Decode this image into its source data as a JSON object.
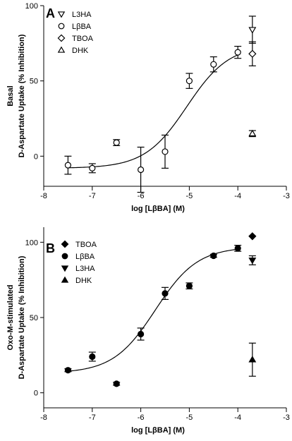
{
  "chart_data": [
    {
      "type": "scatter",
      "panel_label": "A",
      "xlabel": "log [LβBA] (M)",
      "ylabel_lines": [
        "Basal",
        "D-Aspartate Uptake (% Inhibition)"
      ],
      "xlim": [
        -8,
        -3
      ],
      "ylim": [
        -20,
        100
      ],
      "x_ticks": [
        -8,
        -7,
        -6,
        -5,
        -4,
        -3
      ],
      "x_tick_labels": [
        "-8",
        "-7",
        "-6",
        "-5",
        "-4",
        "-3"
      ],
      "y_ticks": [
        0,
        50,
        100
      ],
      "y_tick_labels": [
        "0",
        "50",
        "100"
      ],
      "grid": false,
      "legend": [
        {
          "label": "L3HA",
          "marker": "triangle-down",
          "filled": false
        },
        {
          "label": "LβBA",
          "marker": "circle",
          "filled": false
        },
        {
          "label": "TBOA",
          "marker": "diamond",
          "filled": false
        },
        {
          "label": "DHK",
          "marker": "triangle-up",
          "filled": false
        }
      ],
      "legend_position": "top-left",
      "series": [
        {
          "name": "LβBA",
          "marker": "circle",
          "filled": false,
          "x": [
            -7.5,
            -7.0,
            -6.5,
            -6.0,
            -5.5,
            -5.0,
            -4.5,
            -4.0
          ],
          "y": [
            -6,
            -8,
            9,
            -9,
            3,
            50,
            61,
            69
          ],
          "err": [
            6,
            3,
            2,
            15,
            11,
            5,
            5,
            4
          ]
        },
        {
          "name": "L3HA",
          "marker": "triangle-down",
          "filled": false,
          "x": [
            -3.7
          ],
          "y": [
            84
          ],
          "err": [
            9
          ]
        },
        {
          "name": "TBOA",
          "marker": "diamond",
          "filled": false,
          "x": [
            -3.7
          ],
          "y": [
            68
          ],
          "err": [
            8
          ]
        },
        {
          "name": "DHK",
          "marker": "triangle-up",
          "filled": false,
          "x": [
            -3.7
          ],
          "y": [
            15
          ],
          "err": [
            2
          ]
        }
      ],
      "fit_curve": {
        "series": "LβBA",
        "bottom": -8,
        "top": 74,
        "logEC50": -5.05,
        "hill": 1.0,
        "x_range": [
          -7.5,
          -4.0
        ]
      }
    },
    {
      "type": "scatter",
      "panel_label": "B",
      "xlabel": "log [LβBA] (M)",
      "ylabel_lines": [
        "Oxo-M-stimulated",
        "D-Aspartate Uptake (% Inhibition)"
      ],
      "xlim": [
        -8,
        -3
      ],
      "ylim": [
        -10,
        110
      ],
      "x_ticks": [
        -8,
        -7,
        -6,
        -5,
        -4,
        -3
      ],
      "x_tick_labels": [
        "-8",
        "-7",
        "-6",
        "-5",
        "-4",
        "-3"
      ],
      "y_ticks": [
        0,
        50,
        100
      ],
      "y_tick_labels": [
        "0",
        "50",
        "100"
      ],
      "grid": false,
      "legend": [
        {
          "label": "TBOA",
          "marker": "diamond",
          "filled": true
        },
        {
          "label": "LβBA",
          "marker": "circle",
          "filled": true
        },
        {
          "label": "L3HA",
          "marker": "triangle-down",
          "filled": true
        },
        {
          "label": "DHK",
          "marker": "triangle-up",
          "filled": true
        }
      ],
      "legend_position": "top-left",
      "series": [
        {
          "name": "LβBA",
          "marker": "circle",
          "filled": true,
          "x": [
            -7.5,
            -7.0,
            -6.5,
            -6.0,
            -5.5,
            -5.0,
            -4.5,
            -4.0
          ],
          "y": [
            15,
            24,
            6,
            39,
            66,
            71,
            91,
            96
          ],
          "err": [
            1,
            3,
            1,
            4,
            4,
            2,
            1,
            2
          ]
        },
        {
          "name": "TBOA",
          "marker": "diamond",
          "filled": true,
          "x": [
            -3.7
          ],
          "y": [
            104
          ],
          "err": [
            0
          ]
        },
        {
          "name": "L3HA",
          "marker": "triangle-down",
          "filled": true,
          "x": [
            -3.7
          ],
          "y": [
            88
          ],
          "err": [
            3
          ]
        },
        {
          "name": "DHK",
          "marker": "triangle-up",
          "filled": true,
          "x": [
            -3.7
          ],
          "y": [
            22
          ],
          "err": [
            11
          ]
        }
      ],
      "fit_curve": {
        "series": "LβBA",
        "bottom": 13,
        "top": 97,
        "logEC50": -5.7,
        "hill": 1.0,
        "x_range": [
          -7.5,
          -4.0
        ]
      }
    }
  ]
}
